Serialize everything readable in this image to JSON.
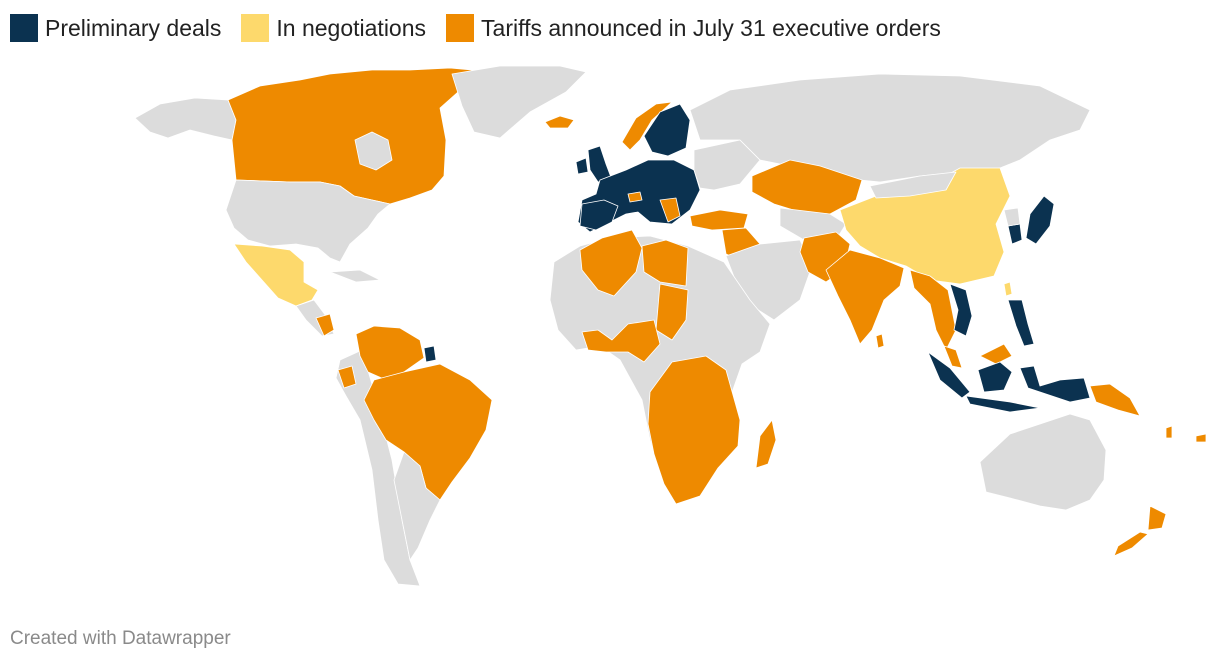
{
  "legend": {
    "items": [
      {
        "label": "Preliminary deals",
        "color": "#0b3250"
      },
      {
        "label": "In negotiations",
        "color": "#fdd96c"
      },
      {
        "label": "Tariffs announced in July 31 executive orders",
        "color": "#ee8a00"
      }
    ]
  },
  "colors": {
    "no_data": "#dcdcdc",
    "preliminary_deals": "#0b3250",
    "in_negotiations": "#fdd96c",
    "tariffs_announced": "#ee8a00"
  },
  "footer": {
    "credit": "Created with Datawrapper"
  }
}
